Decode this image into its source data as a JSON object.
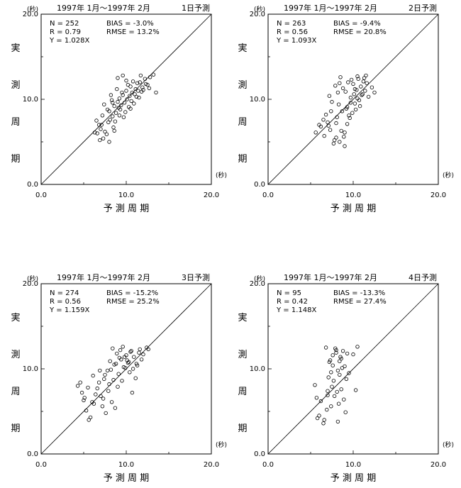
{
  "chart_data": [
    {
      "type": "scatter",
      "period": "1997年 1月〜1997年 2月",
      "forecast_label": "1日予測",
      "stats": {
        "n": "N = 252",
        "r": "R = 0.79",
        "y": "Y = 1.028X",
        "bias": "BIAS =  -3.0%",
        "rmse": "RMSE =  13.2%"
      },
      "xlim": [
        0,
        20
      ],
      "ylim": [
        0,
        20
      ],
      "x_ticks": [
        "0.0",
        "10.0",
        "20.0"
      ],
      "y_ticks": [
        "0.0",
        "10.0",
        "20.0"
      ],
      "xlabel": "予  測  周  期",
      "ylabel": [
        "実",
        "測",
        "周",
        "期"
      ],
      "unit": "(秒)",
      "reference_line": "y = x",
      "x": [
        6.6,
        7.0,
        7.3,
        6.8,
        7.5,
        7.9,
        7.2,
        8.1,
        8.4,
        8.0,
        8.8,
        8.6,
        9.1,
        9.0,
        9.4,
        9.2,
        9.8,
        9.6,
        10.1,
        10.4,
        10.0,
        10.7,
        10.5,
        11.1,
        11.3,
        11.0,
        11.6,
        11.9,
        12.2,
        12.5,
        12.8,
        13.2,
        8.2,
        8.9,
        9.5,
        10.2,
        10.8,
        11.4,
        7.7,
        8.5,
        9.3,
        10.6,
        11.8,
        12.3,
        7.4,
        8.7,
        9.7,
        6.9,
        7.8,
        10.3,
        9.9,
        8.3,
        11.2,
        12.0,
        9.6,
        10.9,
        6.3,
        6.5,
        8.0,
        8.6,
        9.2,
        10.0,
        10.5,
        11.5,
        7.1,
        9.0,
        12.7,
        13.5,
        8.4,
        11.7
      ],
      "y": [
        6.0,
        6.5,
        5.4,
        7.0,
        6.2,
        7.3,
        8.1,
        7.6,
        8.0,
        8.6,
        8.4,
        9.2,
        9.0,
        9.7,
        9.3,
        10.1,
        9.6,
        10.5,
        10.0,
        10.4,
        11.0,
        10.8,
        11.5,
        11.2,
        11.9,
        10.6,
        12.0,
        11.4,
        12.4,
        11.7,
        12.6,
        12.9,
        10.5,
        11.2,
        10.8,
        11.7,
        12.1,
        11.0,
        5.9,
        6.7,
        8.8,
        9.8,
        10.9,
        11.8,
        9.4,
        7.4,
        7.9,
        5.2,
        8.8,
        9.1,
        8.5,
        9.9,
        10.3,
        11.1,
        12.8,
        9.5,
        6.1,
        7.5,
        5.0,
        6.3,
        8.1,
        12.2,
        8.9,
        10.2,
        7.0,
        12.5,
        11.3,
        10.8,
        9.6,
        12.8
      ]
    },
    {
      "type": "scatter",
      "period": "1997年 1月〜1997年 2月",
      "forecast_label": "2日予測",
      "stats": {
        "n": "N = 263",
        "r": "R = 0.56",
        "y": "Y = 1.093X",
        "bias": "BIAS =  -9.4%",
        "rmse": "RMSE =  20.8%"
      },
      "xlim": [
        0,
        20
      ],
      "ylim": [
        0,
        20
      ],
      "x_ticks": [
        "0.0",
        "10.0",
        "20.0"
      ],
      "y_ticks": [
        "0.0",
        "10.0",
        "20.0"
      ],
      "xlabel": "予  測  周  期",
      "ylabel": [
        "実",
        "測",
        "周",
        "期"
      ],
      "unit": "(秒)",
      "reference_line": "y = x",
      "x": [
        5.6,
        6.2,
        6.6,
        7.0,
        7.3,
        7.8,
        8.1,
        8.4,
        8.7,
        9.0,
        9.3,
        9.6,
        9.9,
        10.2,
        10.5,
        10.8,
        11.1,
        11.4,
        11.8,
        12.2,
        6.8,
        7.5,
        8.2,
        8.8,
        9.4,
        10.0,
        10.6,
        11.2,
        7.2,
        7.9,
        8.5,
        9.1,
        9.7,
        10.3,
        10.9,
        11.5,
        8.0,
        8.6,
        9.2,
        9.8,
        10.4,
        11.0,
        6.5,
        7.4,
        8.3,
        9.5,
        10.1,
        10.7,
        11.6,
        12.5,
        7.7,
        8.9,
        9.3,
        10.5,
        8.4,
        9.0,
        7.1,
        10.2,
        11.3,
        9.7,
        8.0,
        6.0
      ],
      "y": [
        6.1,
        6.8,
        5.7,
        7.3,
        6.4,
        5.2,
        7.9,
        5.0,
        8.6,
        6.1,
        9.1,
        7.8,
        8.4,
        9.5,
        10.1,
        9.2,
        10.6,
        11.0,
        10.3,
        11.4,
        8.2,
        9.7,
        10.8,
        11.3,
        12.0,
        11.8,
        12.4,
        12.1,
        10.4,
        11.6,
        12.6,
        10.9,
        9.6,
        8.8,
        11.5,
        12.8,
        7.2,
        6.3,
        8.9,
        12.3,
        11.1,
        10.5,
        7.6,
        8.6,
        9.4,
        8.1,
        10.6,
        9.9,
        11.9,
        10.8,
        4.8,
        5.6,
        7.1,
        12.7,
        11.9,
        4.5,
        6.9,
        11.2,
        12.5,
        10.2,
        5.5,
        7.0
      ]
    },
    {
      "type": "scatter",
      "period": "1997年 1月〜1997年 2月",
      "forecast_label": "3日予測",
      "stats": {
        "n": "N = 274",
        "r": "R = 0.56",
        "y": "Y = 1.159X",
        "bias": "BIAS = -15.2%",
        "rmse": "RMSE =  25.2%"
      },
      "xlim": [
        0,
        20
      ],
      "ylim": [
        0,
        20
      ],
      "x_ticks": [
        "0.0",
        "10.0",
        "20.0"
      ],
      "y_ticks": [
        "0.0",
        "10.0",
        "20.0"
      ],
      "xlabel": "予  測  周  期",
      "ylabel": [
        "実",
        "測",
        "周",
        "期"
      ],
      "unit": "(秒)",
      "reference_line": "y = x",
      "x": [
        4.3,
        4.8,
        5.1,
        5.5,
        6.0,
        6.4,
        6.8,
        7.2,
        7.5,
        7.9,
        8.2,
        8.5,
        8.8,
        9.1,
        9.4,
        9.7,
        10.0,
        10.3,
        10.6,
        10.9,
        11.2,
        11.6,
        12.0,
        12.4,
        4.6,
        5.3,
        6.2,
        7.0,
        7.8,
        8.6,
        9.3,
        10.1,
        10.8,
        11.5,
        5.8,
        6.6,
        7.4,
        8.1,
        8.9,
        9.6,
        10.4,
        11.1,
        5.0,
        7.6,
        8.3,
        9.0,
        9.8,
        10.5,
        11.3,
        12.6,
        6.9,
        8.7,
        9.5,
        10.2,
        11.8,
        5.6,
        7.3,
        8.0,
        9.2,
        10.7,
        6.1,
        8.4,
        9.9
      ],
      "y": [
        8.0,
        7.2,
        6.6,
        7.8,
        6.1,
        7.0,
        8.4,
        5.6,
        9.3,
        7.4,
        9.9,
        8.7,
        10.6,
        9.4,
        11.1,
        10.2,
        11.6,
        10.8,
        12.1,
        11.4,
        10.6,
        12.3,
        11.7,
        12.5,
        8.4,
        5.1,
        5.9,
        6.8,
        9.8,
        10.5,
        12.2,
        11.0,
        10.0,
        11.9,
        4.3,
        7.7,
        8.8,
        10.9,
        11.8,
        12.6,
        9.6,
        8.9,
        6.3,
        4.8,
        6.1,
        7.9,
        11.4,
        12.0,
        10.4,
        12.3,
        9.8,
        5.4,
        8.6,
        10.7,
        11.1,
        4.0,
        6.5,
        8.2,
        11.3,
        7.2,
        9.2,
        12.4,
        10.1
      ]
    },
    {
      "type": "scatter",
      "period": "1997年 1月〜1997年 2月",
      "forecast_label": "4日予測",
      "stats": {
        "n": "N =  95",
        "r": "R = 0.42",
        "y": "Y = 1.148X",
        "bias": "BIAS = -13.3%",
        "rmse": "RMSE =  27.4%"
      },
      "xlim": [
        0,
        20
      ],
      "ylim": [
        0,
        20
      ],
      "x_ticks": [
        "0.0",
        "10.0",
        "20.0"
      ],
      "y_ticks": [
        "0.0",
        "10.0",
        "20.0"
      ],
      "xlabel": "予  測  周  期",
      "ylabel": [
        "実",
        "測",
        "周",
        "期"
      ],
      "unit": "(秒)",
      "reference_line": "y = x",
      "x": [
        5.5,
        5.8,
        6.2,
        6.5,
        6.8,
        7.0,
        7.2,
        7.4,
        7.6,
        7.8,
        8.0,
        8.2,
        8.4,
        8.6,
        8.8,
        9.0,
        9.2,
        9.5,
        10.0,
        10.5,
        7.1,
        7.5,
        7.9,
        8.3,
        8.7,
        9.1,
        7.3,
        7.7,
        8.1,
        8.5,
        8.9,
        6.9,
        7.6,
        8.4,
        9.3,
        6.0,
        7.0,
        8.0,
        8.6,
        7.4,
        6.6,
        8.2,
        10.3,
        5.7
      ],
      "y": [
        8.1,
        4.2,
        6.2,
        3.6,
        12.5,
        7.4,
        10.8,
        5.6,
        11.6,
        6.8,
        11.9,
        9.8,
        10.9,
        11.2,
        12.1,
        10.3,
        8.8,
        9.5,
        11.7,
        12.6,
        9.0,
        7.9,
        12.4,
        5.9,
        10.1,
        4.9,
        11.0,
        8.6,
        7.3,
        11.4,
        6.4,
        5.2,
        10.4,
        9.3,
        11.8,
        4.5,
        6.9,
        12.2,
        7.6,
        9.6,
        4.0,
        3.8,
        7.5,
        6.6
      ]
    }
  ]
}
